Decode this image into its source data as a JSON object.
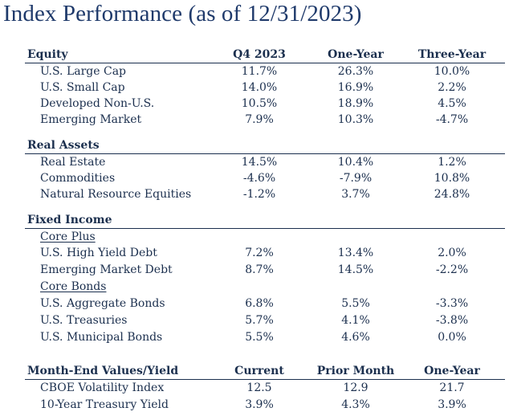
{
  "title": "Index Performance (as of 12/31/2023)",
  "equity": {
    "header": "Equity",
    "cols": [
      "Q4 2023",
      "One-Year",
      "Three-Year"
    ],
    "rows": [
      {
        "label": "U.S. Large Cap",
        "q4": "11.7%",
        "one": "26.3%",
        "three": "10.0%"
      },
      {
        "label": "U.S. Small Cap",
        "q4": "14.0%",
        "one": "16.9%",
        "three": "2.2%"
      },
      {
        "label": "Developed Non-U.S.",
        "q4": "10.5%",
        "one": "18.9%",
        "three": "4.5%"
      },
      {
        "label": "Emerging Market",
        "q4": "7.9%",
        "one": "10.3%",
        "three": "-4.7%"
      }
    ]
  },
  "real_assets": {
    "header": "Real Assets",
    "rows": [
      {
        "label": "Real Estate",
        "q4": "14.5%",
        "one": "10.4%",
        "three": "1.2%"
      },
      {
        "label": "Commodities",
        "q4": "-4.6%",
        "one": "-7.9%",
        "three": "10.8%"
      },
      {
        "label": "Natural Resource Equities",
        "q4": "-1.2%",
        "one": "3.7%",
        "three": "24.8%"
      }
    ]
  },
  "fixed_income": {
    "header": "Fixed Income",
    "core_plus": {
      "label": "Core Plus",
      "rows": [
        {
          "label": "U.S. High Yield Debt",
          "q4": "7.2%",
          "one": "13.4%",
          "three": "2.0%"
        },
        {
          "label": "Emerging Market Debt",
          "q4": "8.7%",
          "one": "14.5%",
          "three": "-2.2%"
        }
      ]
    },
    "core_bonds": {
      "label": "Core Bonds",
      "rows": [
        {
          "label": "U.S. Aggregate Bonds",
          "q4": "6.8%",
          "one": "5.5%",
          "three": "-3.3%"
        },
        {
          "label": "U.S. Treasuries",
          "q4": "5.7%",
          "one": "4.1%",
          "three": "-3.8%"
        },
        {
          "label": "U.S. Municipal Bonds",
          "q4": "5.5%",
          "one": "4.6%",
          "three": "0.0%"
        }
      ]
    }
  },
  "month_end": {
    "header": "Month-End Values/Yield",
    "cols": [
      "Current",
      "Prior Month",
      "One-Year"
    ],
    "rows": [
      {
        "label": "CBOE Volatility Index",
        "current": "12.5",
        "prior": "12.9",
        "one": "21.7"
      },
      {
        "label": "10-Year Treasury Yield",
        "current": "3.9%",
        "prior": "4.3%",
        "one": "3.9%"
      }
    ]
  }
}
